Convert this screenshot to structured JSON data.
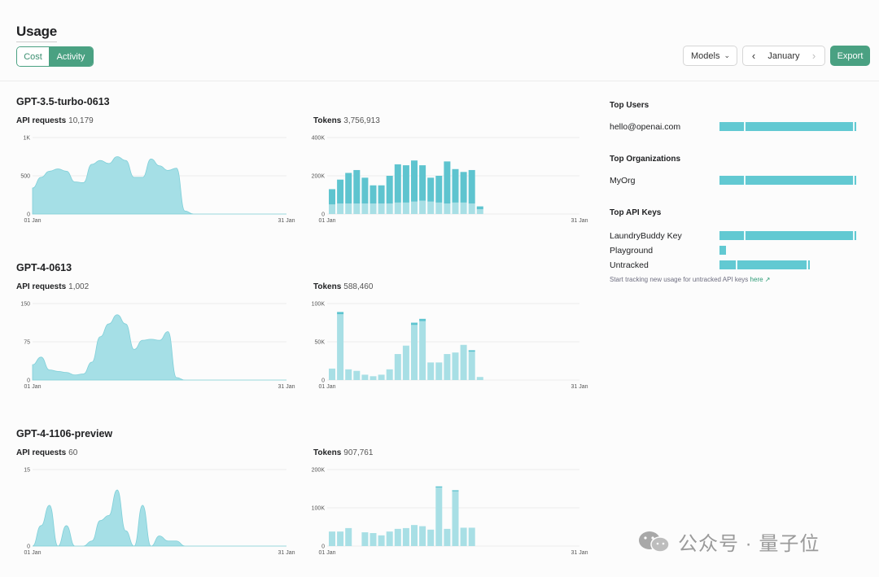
{
  "header": {
    "title": "Usage",
    "tabs": [
      {
        "label": "Cost"
      },
      {
        "label": "Activity"
      }
    ],
    "models_label": "Models",
    "month_label": "January",
    "export_label": "Export"
  },
  "models": [
    {
      "name": "GPT-3.5-turbo-0613",
      "requests": {
        "label": "API requests",
        "value": "10,179"
      },
      "tokens": {
        "label": "Tokens",
        "value": "3,756,913"
      },
      "requests_chart": {
        "type": "area",
        "y_ticks": [
          "1K",
          "500",
          "0"
        ],
        "ylim": [
          0,
          1000
        ],
        "x_start_label": "01 Jan",
        "x_end_label": "31 Jan",
        "x": [
          1,
          2,
          3,
          4,
          5,
          6,
          7,
          8,
          9,
          10,
          11,
          12,
          13,
          14,
          15,
          16,
          17,
          18,
          19,
          20,
          21,
          22,
          23,
          24,
          25,
          26,
          27,
          28,
          29,
          30,
          31
        ],
        "values": [
          340,
          480,
          560,
          590,
          560,
          420,
          410,
          650,
          700,
          660,
          750,
          700,
          480,
          480,
          720,
          630,
          570,
          600,
          40,
          0,
          0,
          0,
          0,
          0,
          0,
          0,
          0,
          0,
          0,
          0,
          0
        ]
      },
      "tokens_chart": {
        "type": "bar",
        "y_ticks": [
          "400K",
          "200K",
          "0"
        ],
        "ylim": [
          0,
          400000
        ],
        "x_start_label": "01 Jan",
        "x_end_label": "31 Jan",
        "series": [
          {
            "name": "base",
            "values": [
              50000,
              55000,
              55000,
              55000,
              55000,
              55000,
              55000,
              55000,
              60000,
              60000,
              65000,
              70000,
              65000,
              60000,
              55000,
              60000,
              60000,
              55000,
              25000
            ]
          },
          {
            "name": "top",
            "values": [
              80000,
              125000,
              160000,
              175000,
              135000,
              95000,
              95000,
              145000,
              200000,
              195000,
              215000,
              185000,
              125000,
              140000,
              220000,
              175000,
              160000,
              175000,
              15000
            ]
          }
        ]
      }
    },
    {
      "name": "GPT-4-0613",
      "requests": {
        "label": "API requests",
        "value": "1,002"
      },
      "tokens": {
        "label": "Tokens",
        "value": "588,460"
      },
      "requests_chart": {
        "type": "area",
        "y_ticks": [
          "150",
          "75",
          "0"
        ],
        "ylim": [
          0,
          150
        ],
        "x_start_label": "01 Jan",
        "x_end_label": "31 Jan",
        "x": [
          1,
          2,
          3,
          4,
          5,
          6,
          7,
          8,
          9,
          10,
          11,
          12,
          13,
          14,
          15,
          16,
          17,
          18,
          19,
          20,
          21,
          22,
          23,
          24,
          25,
          26,
          27,
          28,
          29,
          30,
          31
        ],
        "values": [
          30,
          45,
          20,
          17,
          15,
          10,
          12,
          35,
          85,
          110,
          128,
          110,
          60,
          78,
          80,
          78,
          95,
          5,
          0,
          0,
          0,
          0,
          0,
          0,
          0,
          0,
          0,
          0,
          0,
          0,
          0
        ]
      },
      "tokens_chart": {
        "type": "bar",
        "y_ticks": [
          "100K",
          "50K",
          "0"
        ],
        "ylim": [
          0,
          100000
        ],
        "x_start_label": "01 Jan",
        "x_end_label": "31 Jan",
        "series": [
          {
            "name": "base",
            "values": [
              15000,
              86000,
              14000,
              12000,
              7000,
              5000,
              7000,
              14000,
              34000,
              45000,
              72000,
              77000,
              23000,
              23000,
              34000,
              36000,
              46000,
              37000,
              4000
            ]
          },
          {
            "name": "top",
            "values": [
              0,
              3000,
              0,
              0,
              0,
              0,
              0,
              0,
              0,
              0,
              3000,
              3000,
              0,
              0,
              0,
              0,
              0,
              2000,
              0
            ]
          }
        ]
      }
    },
    {
      "name": "GPT-4-1106-preview",
      "requests": {
        "label": "API requests",
        "value": "60"
      },
      "tokens": {
        "label": "Tokens",
        "value": "907,761"
      },
      "requests_chart": {
        "type": "area",
        "y_ticks": [
          "15",
          "0"
        ],
        "ylim": [
          0,
          15
        ],
        "x_start_label": "01 Jan",
        "x_end_label": "31 Jan",
        "x": [
          1,
          2,
          3,
          4,
          5,
          6,
          7,
          8,
          9,
          10,
          11,
          12,
          13,
          14,
          15,
          16,
          17,
          18,
          19,
          20,
          21,
          22,
          23,
          24,
          25,
          26,
          27,
          28,
          29,
          30,
          31
        ],
        "values": [
          0,
          4,
          8,
          0,
          4,
          0,
          0,
          1,
          5,
          6,
          11,
          3,
          0,
          8,
          0,
          2,
          1,
          1,
          0,
          0,
          0,
          0,
          0,
          0,
          0,
          0,
          0,
          0,
          0,
          0,
          0
        ]
      },
      "tokens_chart": {
        "type": "bar",
        "y_ticks": [
          "200K",
          "100K",
          "0"
        ],
        "ylim": [
          0,
          200000
        ],
        "x_start_label": "01 Jan",
        "x_end_label": "31 Jan",
        "series": [
          {
            "name": "base",
            "values": [
              38000,
              38000,
              47000,
              0,
              36000,
              34000,
              28000,
              38000,
              45000,
              47000,
              55000,
              52000,
              43000,
              153000,
              45000,
              143000,
              48000,
              48000,
              0
            ]
          },
          {
            "name": "top",
            "values": [
              0,
              0,
              0,
              0,
              0,
              0,
              0,
              0,
              0,
              0,
              0,
              0,
              0,
              3000,
              0,
              3000,
              0,
              0,
              0
            ]
          }
        ]
      }
    }
  ],
  "sidebar": {
    "top_users": {
      "title": "Top Users",
      "rows": [
        {
          "label": "hello@openai.com",
          "value": 1.0
        }
      ]
    },
    "top_orgs": {
      "title": "Top Organizations",
      "rows": [
        {
          "label": "MyOrg",
          "value": 1.0
        }
      ]
    },
    "top_keys": {
      "title": "Top API Keys",
      "rows": [
        {
          "label": "LaundryBuddy Key",
          "value": 1.0
        },
        {
          "label": "Playground",
          "value": 0.05
        },
        {
          "label": "Untracked",
          "value": 0.66
        }
      ]
    },
    "note": {
      "text": "Start tracking new usage for untracked API keys",
      "link": "here",
      "arrow": "↗"
    }
  },
  "colors": {
    "accent": "#4aa182",
    "chart_light": "#a8dfe5",
    "chart_dark": "#5ec4cf",
    "area": "#a5dfe6"
  },
  "watermark": {
    "text": "公众号 · 量子位"
  }
}
